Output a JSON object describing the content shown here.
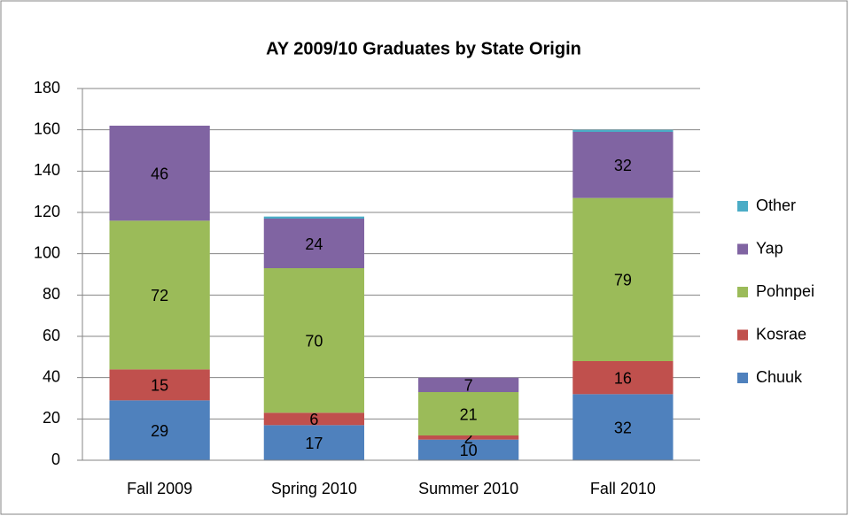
{
  "chart_data": {
    "type": "stacked_bar",
    "title": "AY 2009/10 Graduates by State Origin",
    "categories": [
      "Fall 2009",
      "Spring 2010",
      "Summer 2010",
      "Fall 2010"
    ],
    "series": [
      {
        "name": "Chuuk",
        "color": "#4f81bd",
        "values": [
          29,
          17,
          10,
          32
        ],
        "show_labels": true
      },
      {
        "name": "Kosrae",
        "color": "#c0504d",
        "values": [
          15,
          6,
          2,
          16
        ],
        "show_labels": true
      },
      {
        "name": "Pohnpei",
        "color": "#9bbb59",
        "values": [
          72,
          70,
          21,
          79
        ],
        "show_labels": true
      },
      {
        "name": "Yap",
        "color": "#8064a2",
        "values": [
          46,
          24,
          7,
          32
        ],
        "show_labels": true
      },
      {
        "name": "Other",
        "color": "#4bacc6",
        "values": [
          0,
          1,
          0,
          1
        ],
        "show_labels": false
      }
    ],
    "ylim": [
      0,
      180
    ],
    "yticks": [
      0,
      20,
      40,
      60,
      80,
      100,
      120,
      140,
      160,
      180
    ],
    "grid": true,
    "legend": "right"
  }
}
